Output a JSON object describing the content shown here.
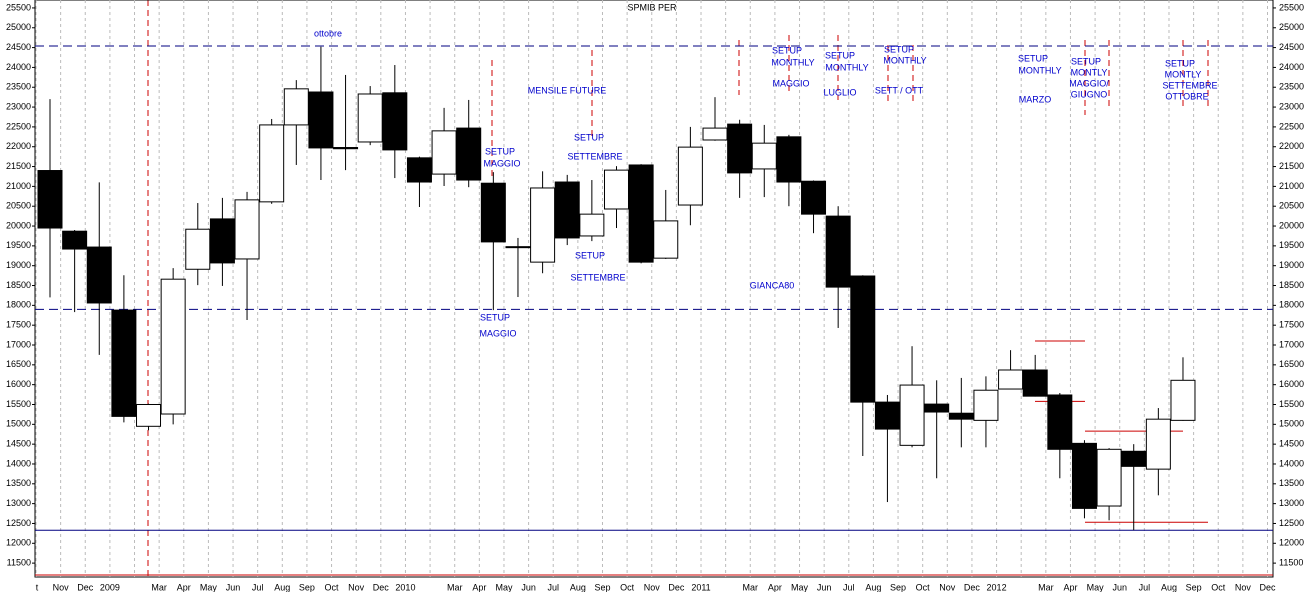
{
  "chart_data": {
    "type": "candlestick",
    "title": "SPMIB PER",
    "categories": [
      "t",
      "Nov",
      "Dec",
      "2009",
      null,
      "Mar",
      "Apr",
      "May",
      "Jun",
      "Jul",
      "Aug",
      "Sep",
      "Oct",
      "Nov",
      "Dec",
      "2010",
      null,
      "Mar",
      "Apr",
      "May",
      "Jun",
      "Jul",
      "Aug",
      "Sep",
      "Oct",
      "Nov",
      "Dec",
      "2011",
      null,
      "Mar",
      "Apr",
      "May",
      "Jun",
      "Jul",
      "Aug",
      "Sep",
      "Oct",
      "Nov",
      "Dec",
      "2012",
      null,
      "Mar",
      "Apr",
      "May",
      "Jun",
      "Jul",
      "Aug",
      "Sep",
      "Oct",
      "Nov",
      "Dec"
    ],
    "open": [
      21400,
      19870,
      19470,
      17880,
      14950,
      15260,
      18910,
      20180,
      19170,
      20610,
      22550,
      23380,
      21980,
      22120,
      23360,
      21720,
      21310,
      22470,
      21080,
      19480,
      19090,
      21110,
      19750,
      20430,
      21540,
      19190,
      20530,
      22170,
      22570,
      21440,
      22250,
      21130,
      20250,
      18740,
      15560,
      14470,
      15510,
      15280,
      15100,
      15890,
      16370,
      15740,
      14520,
      12940,
      14320,
      13870,
      15100,
      null,
      null,
      null,
      null
    ],
    "high": [
      23200,
      19900,
      21100,
      18760,
      15520,
      18940,
      20580,
      20710,
      20860,
      22700,
      23680,
      24520,
      23810,
      23530,
      24060,
      21750,
      22980,
      23180,
      21360,
      19700,
      21380,
      21290,
      21160,
      21510,
      21560,
      20910,
      22500,
      23250,
      22680,
      22550,
      22300,
      21150,
      20500,
      18760,
      15740,
      16970,
      16110,
      16170,
      16210,
      16870,
      16750,
      15790,
      14600,
      14400,
      14500,
      15410,
      16690,
      null,
      null,
      null,
      null
    ],
    "low": [
      18200,
      17830,
      16750,
      15050,
      14850,
      15000,
      18510,
      18490,
      17630,
      20560,
      21540,
      21160,
      21410,
      22040,
      21210,
      20480,
      21010,
      20980,
      17880,
      18210,
      18810,
      19520,
      19620,
      19950,
      19060,
      19170,
      20020,
      22150,
      20710,
      20730,
      20500,
      19820,
      17430,
      14200,
      13040,
      14420,
      13640,
      14420,
      14420,
      15880,
      15700,
      13640,
      12630,
      12580,
      12330,
      13210,
      15090,
      null,
      null,
      null,
      null
    ],
    "close": [
      19950,
      19420,
      18060,
      15200,
      15500,
      18660,
      19920,
      19070,
      20660,
      22550,
      23460,
      21970,
      21950,
      23330,
      21920,
      21110,
      22400,
      21160,
      19600,
      19460,
      20960,
      19700,
      20300,
      21410,
      19090,
      20130,
      21990,
      22470,
      21340,
      22090,
      21110,
      20300,
      18460,
      15560,
      14880,
      15990,
      15310,
      15130,
      15860,
      16370,
      15710,
      14370,
      12880,
      14370,
      13940,
      15130,
      16110,
      null,
      null,
      null,
      null
    ],
    "up_color": "#ffffff",
    "down_color": "#000000",
    "ylim": [
      11150,
      25700
    ],
    "yticks": [
      11500,
      12000,
      12500,
      13000,
      13500,
      14000,
      14500,
      15000,
      15500,
      16000,
      16500,
      17000,
      17500,
      18000,
      18500,
      19000,
      19500,
      20000,
      20500,
      21000,
      21500,
      22000,
      22500,
      23000,
      23500,
      24000,
      24500,
      25000,
      25500
    ],
    "grid": true,
    "hlines": [
      {
        "value": 24540,
        "color": "#000080",
        "style": "dashed"
      },
      {
        "value": 17900,
        "color": "#000080",
        "style": "dashed"
      },
      {
        "value": 12330,
        "color": "#000080",
        "style": "solid"
      },
      {
        "value": 17100,
        "color": "#cc0000",
        "style": "solid"
      },
      {
        "value": 15580,
        "color": "#cc0000",
        "style": "solid"
      },
      {
        "value": 14830,
        "color": "#cc0000",
        "style": "solid"
      },
      {
        "value": 12530,
        "color": "#cc0000",
        "style": "solid"
      }
    ],
    "annotation_color": "#0000cc",
    "annotations": [
      "ottobre",
      "SETUP",
      "MAGGIO",
      "MENSILE FUTURE",
      "SETUP",
      "SETTEMBRE",
      "SETUP",
      "SETTEMBRE",
      "SETUP",
      "MAGGIO",
      "GIANCA80",
      "SETUP",
      "MONTHLY",
      "MAGGIO",
      "SETUP",
      "MONTHLY",
      "LUGLIO",
      "SETUP",
      "MONTHLY",
      "SETT / OTT",
      "SETUP",
      "MONTHLY",
      "MARZO",
      "SETUP",
      "MONTLY",
      "MAGGIO/",
      "GIUGNO",
      "SETUP",
      "MONTLY",
      "SETTEMBRE",
      "OTTOBRE"
    ]
  }
}
